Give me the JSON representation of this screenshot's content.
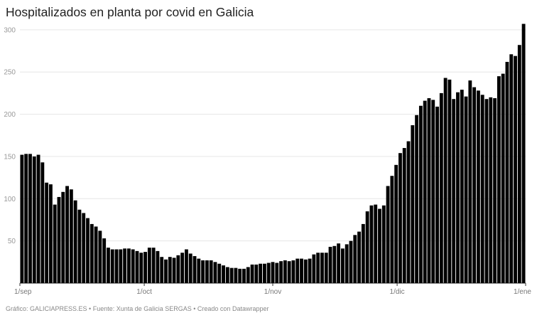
{
  "header": {
    "title": "Hospitalizados en planta por covid en Galicia"
  },
  "footer": {
    "text": "Gráfico: GALICIAPRESS.ES • Fuente: Xunta de Galicia SERGAS • Creado con Datawrapper"
  },
  "colors": {
    "bar": "#000000",
    "grid": "#e6e6e6",
    "axis_text": "#999999"
  },
  "chart_data": {
    "type": "bar",
    "title": "Hospitalizados en planta por covid en Galicia",
    "xlabel": "",
    "ylabel": "",
    "ylim": [
      0,
      310
    ],
    "yticks": [
      50,
      100,
      150,
      200,
      250,
      300
    ],
    "grid": true,
    "x_range": [
      "2020-09-01",
      "2021-01-01"
    ],
    "xticks": [
      {
        "label": "1/sep",
        "date": "2020-09-01"
      },
      {
        "label": "1/oct",
        "date": "2020-10-01"
      },
      {
        "label": "1/nov",
        "date": "2020-11-01"
      },
      {
        "label": "1/dic",
        "date": "2020-12-01"
      },
      {
        "label": "1/ene",
        "date": "2021-01-01"
      }
    ],
    "values": [
      152,
      153,
      153,
      150,
      152,
      143,
      119,
      117,
      93,
      102,
      108,
      115,
      111,
      98,
      87,
      83,
      77,
      70,
      67,
      62,
      53,
      42,
      40,
      40,
      40,
      41,
      41,
      40,
      38,
      36,
      37,
      42,
      42,
      38,
      31,
      28,
      31,
      30,
      33,
      36,
      40,
      35,
      32,
      29,
      27,
      27,
      27,
      25,
      23,
      21,
      19,
      18,
      18,
      17,
      17,
      19,
      22,
      22,
      23,
      23,
      24,
      25,
      24,
      26,
      27,
      26,
      27,
      29,
      29,
      28,
      29,
      34,
      36,
      36,
      36,
      43,
      44,
      47,
      41,
      46,
      50,
      57,
      61,
      70,
      85,
      92,
      93,
      88,
      92,
      115,
      127,
      140,
      154,
      160,
      168,
      187,
      199,
      210,
      216,
      219,
      217,
      209,
      225,
      243,
      241,
      218,
      226,
      229,
      221,
      240,
      232,
      228,
      223,
      218,
      220,
      219,
      245,
      248,
      262,
      271,
      269,
      282,
      307
    ]
  }
}
